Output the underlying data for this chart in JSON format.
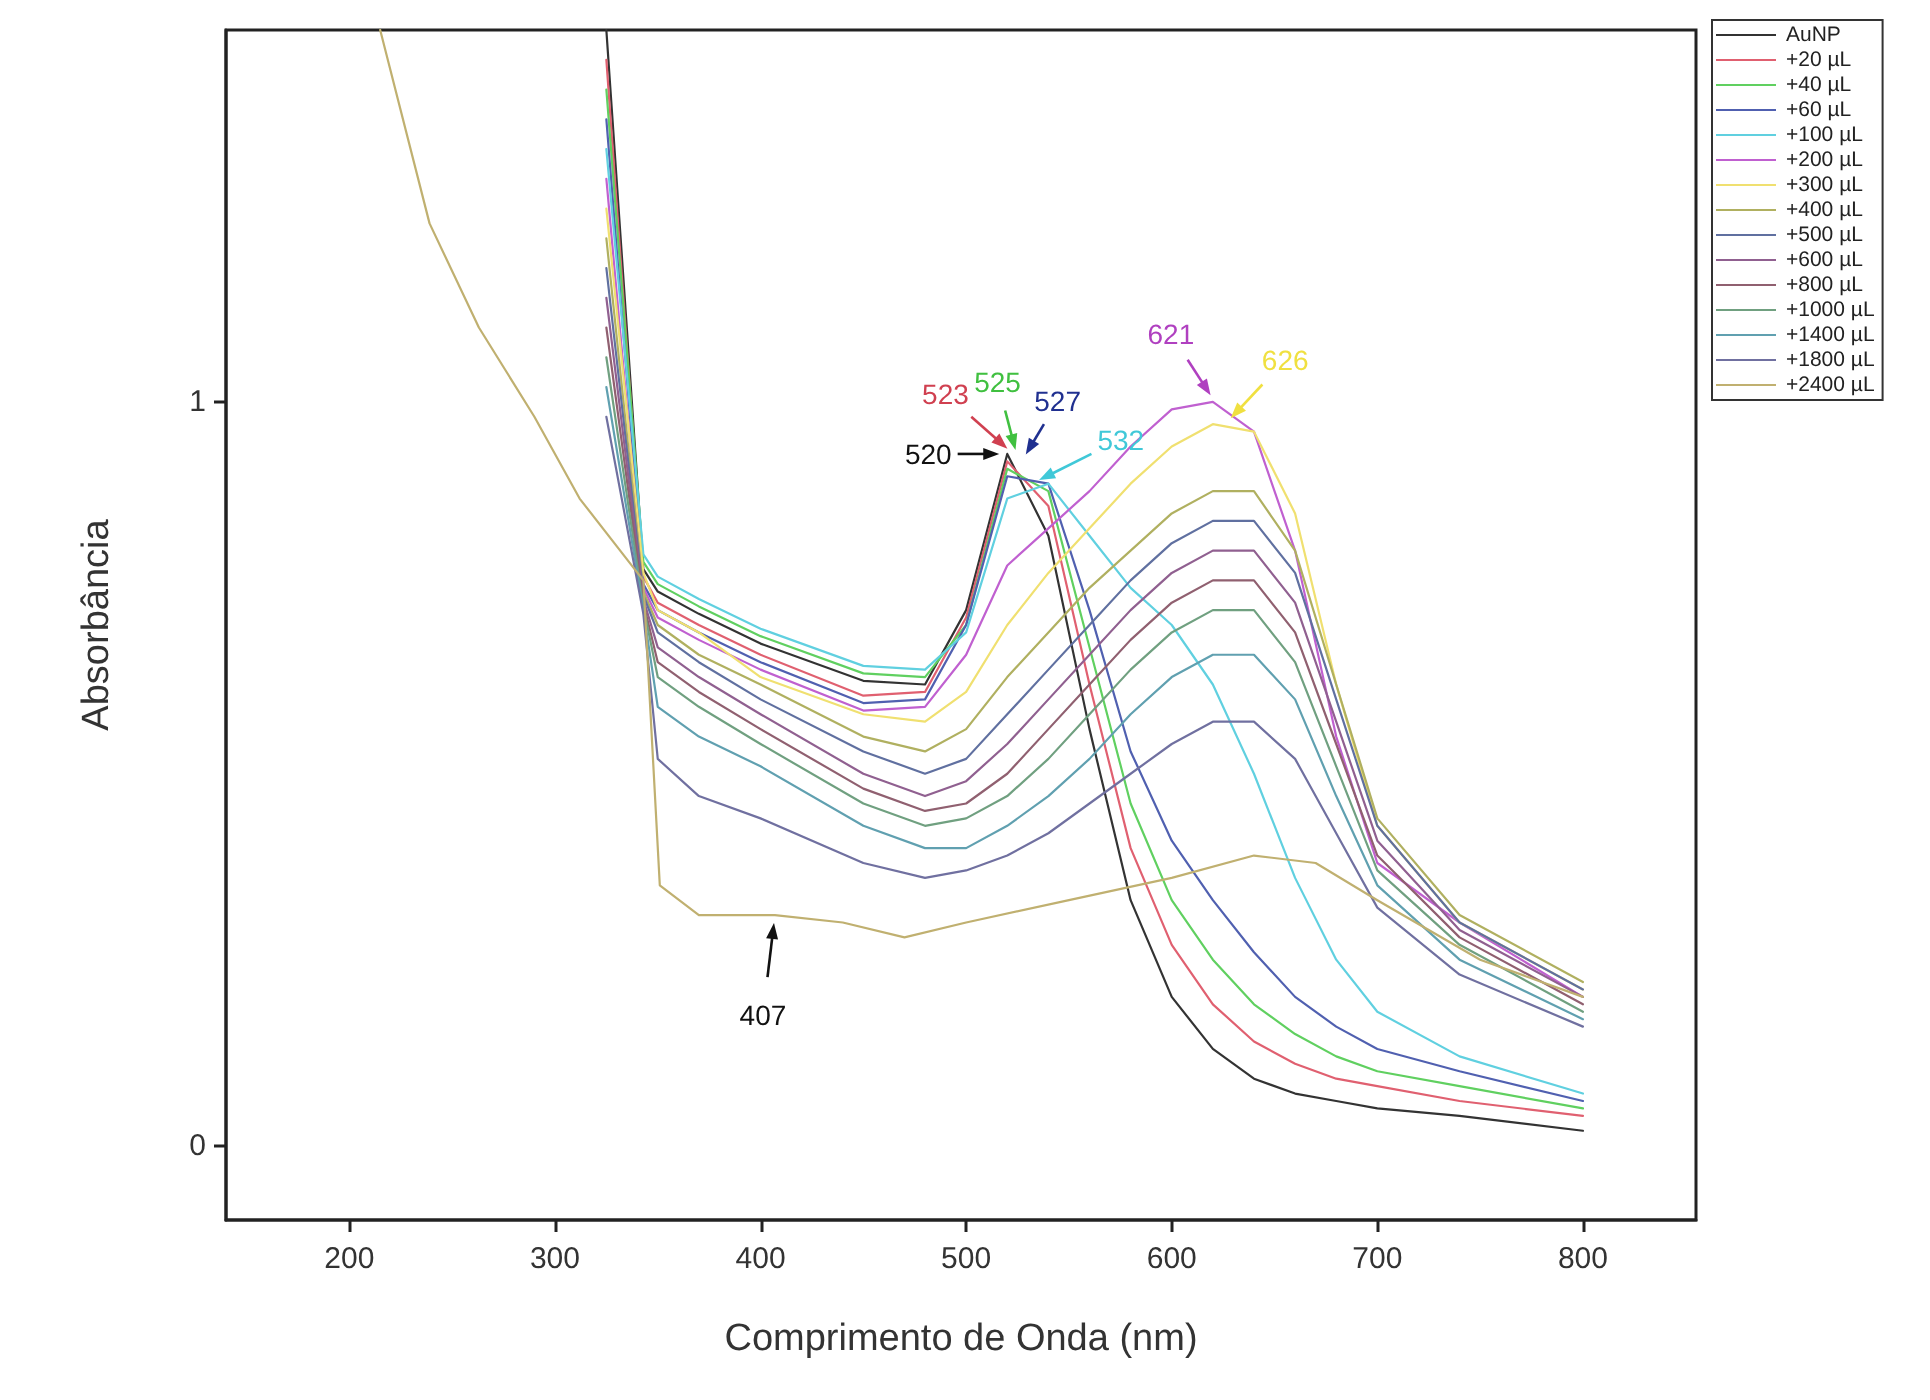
{
  "chart_data": {
    "type": "line",
    "xlabel": "Comprimento de Onda (nm)",
    "ylabel": "Absorbância",
    "xlim": [
      140,
      855
    ],
    "xticks": [
      200,
      300,
      400,
      500,
      600,
      700,
      800
    ],
    "ylim": [
      -0.1,
      1.5
    ],
    "yticks": [
      0,
      1
    ],
    "grid": false,
    "legend": "right",
    "x": [
      325,
      343,
      350,
      370,
      400,
      450,
      480,
      500,
      520,
      540,
      560,
      580,
      600,
      620,
      640,
      660,
      680,
      700,
      740,
      800
    ],
    "series": [
      {
        "name": "AuNP",
        "color": "#333333",
        "values": [
          1.5,
          0.775,
          0.745,
          0.715,
          0.675,
          0.625,
          0.62,
          0.72,
          0.93,
          0.82,
          0.56,
          0.33,
          0.2,
          0.13,
          0.09,
          0.07,
          0.06,
          0.05,
          0.04,
          0.02
        ]
      },
      {
        "name": "+20 µL",
        "color": "#e06070",
        "values": [
          1.46,
          0.765,
          0.73,
          0.7,
          0.66,
          0.605,
          0.61,
          0.71,
          0.92,
          0.86,
          0.62,
          0.4,
          0.27,
          0.19,
          0.14,
          0.11,
          0.09,
          0.08,
          0.06,
          0.04
        ]
      },
      {
        "name": "+40 µL",
        "color": "#60d060",
        "values": [
          1.42,
          0.785,
          0.755,
          0.725,
          0.685,
          0.635,
          0.63,
          0.7,
          0.91,
          0.88,
          0.67,
          0.46,
          0.33,
          0.25,
          0.19,
          0.15,
          0.12,
          0.1,
          0.08,
          0.05
        ]
      },
      {
        "name": "+60 µL",
        "color": "#5060b0",
        "values": [
          1.38,
          0.755,
          0.72,
          0.69,
          0.65,
          0.595,
          0.6,
          0.7,
          0.9,
          0.89,
          0.72,
          0.53,
          0.41,
          0.33,
          0.26,
          0.2,
          0.16,
          0.13,
          0.1,
          0.06
        ]
      },
      {
        "name": "+100 µL",
        "color": "#60d0e0",
        "values": [
          1.34,
          0.795,
          0.765,
          0.735,
          0.695,
          0.645,
          0.64,
          0.69,
          0.87,
          0.89,
          0.82,
          0.75,
          0.7,
          0.62,
          0.5,
          0.36,
          0.25,
          0.18,
          0.12,
          0.07
        ]
      },
      {
        "name": "+200 µL",
        "color": "#c060d0",
        "values": [
          1.3,
          0.75,
          0.71,
          0.68,
          0.64,
          0.585,
          0.59,
          0.66,
          0.78,
          0.83,
          0.88,
          0.94,
          0.99,
          1.0,
          0.96,
          0.8,
          0.55,
          0.38,
          0.3,
          0.2
        ]
      },
      {
        "name": "+300 µL",
        "color": "#f0e070",
        "values": [
          1.26,
          0.77,
          0.72,
          0.69,
          0.63,
          0.58,
          0.57,
          0.61,
          0.7,
          0.77,
          0.83,
          0.89,
          0.94,
          0.97,
          0.96,
          0.85,
          0.62,
          0.43,
          0.3,
          0.21
        ]
      },
      {
        "name": "+400 µL",
        "color": "#b0b060",
        "values": [
          1.22,
          0.745,
          0.7,
          0.66,
          0.62,
          0.55,
          0.53,
          0.56,
          0.63,
          0.69,
          0.75,
          0.8,
          0.85,
          0.88,
          0.88,
          0.8,
          0.62,
          0.44,
          0.31,
          0.22
        ]
      },
      {
        "name": "+500 µL",
        "color": "#6070a0",
        "values": [
          1.18,
          0.74,
          0.69,
          0.65,
          0.6,
          0.53,
          0.5,
          0.52,
          0.58,
          0.64,
          0.7,
          0.76,
          0.81,
          0.84,
          0.84,
          0.77,
          0.6,
          0.43,
          0.3,
          0.21
        ]
      },
      {
        "name": "+600 µL",
        "color": "#906090",
        "values": [
          1.14,
          0.735,
          0.67,
          0.63,
          0.58,
          0.5,
          0.47,
          0.49,
          0.54,
          0.6,
          0.66,
          0.72,
          0.77,
          0.8,
          0.8,
          0.73,
          0.57,
          0.41,
          0.29,
          0.2
        ]
      },
      {
        "name": "+800 µL",
        "color": "#906070",
        "values": [
          1.1,
          0.73,
          0.65,
          0.61,
          0.56,
          0.48,
          0.45,
          0.46,
          0.5,
          0.56,
          0.62,
          0.68,
          0.73,
          0.76,
          0.76,
          0.69,
          0.54,
          0.39,
          0.28,
          0.19
        ]
      },
      {
        "name": "+1000 µL",
        "color": "#70a080",
        "values": [
          1.06,
          0.725,
          0.63,
          0.59,
          0.54,
          0.46,
          0.43,
          0.44,
          0.47,
          0.52,
          0.58,
          0.64,
          0.69,
          0.72,
          0.72,
          0.65,
          0.51,
          0.37,
          0.27,
          0.18
        ]
      },
      {
        "name": "+1400 µL",
        "color": "#60a0b0",
        "values": [
          1.02,
          0.72,
          0.59,
          0.55,
          0.51,
          0.43,
          0.4,
          0.4,
          0.43,
          0.47,
          0.52,
          0.58,
          0.63,
          0.66,
          0.66,
          0.6,
          0.47,
          0.35,
          0.25,
          0.17
        ]
      },
      {
        "name": "+1800 µL",
        "color": "#7070a0",
        "values": [
          0.98,
          0.715,
          0.52,
          0.47,
          0.44,
          0.38,
          0.36,
          0.37,
          0.39,
          0.42,
          0.46,
          0.5,
          0.54,
          0.57,
          0.57,
          0.52,
          0.42,
          0.32,
          0.23,
          0.16
        ]
      },
      {
        "name": "+2400 µL",
        "color": "#c0b070",
        "x": [
          215,
          239,
          263,
          290,
          312,
          343,
          351,
          370,
          407,
          440,
          470,
          500,
          550,
          600,
          640,
          670,
          700,
          750,
          800
        ],
        "values": [
          1.5,
          1.24,
          1.1,
          0.98,
          0.87,
          0.76,
          0.35,
          0.31,
          0.31,
          0.3,
          0.28,
          0.3,
          0.33,
          0.36,
          0.39,
          0.38,
          0.33,
          0.25,
          0.2
        ]
      }
    ],
    "annotations": [
      {
        "text": "520",
        "x": 520,
        "y": 0.93
      },
      {
        "text": "523",
        "x": 523,
        "y": 0.93
      },
      {
        "text": "525",
        "x": 525,
        "y": 0.925
      },
      {
        "text": "527",
        "x": 527,
        "y": 0.92
      },
      {
        "text": "532",
        "x": 532,
        "y": 0.89
      },
      {
        "text": "621",
        "x": 621,
        "y": 1.0
      },
      {
        "text": "626",
        "x": 626,
        "y": 0.97
      },
      {
        "text": "407",
        "x": 407,
        "y": 0.31
      }
    ]
  }
}
